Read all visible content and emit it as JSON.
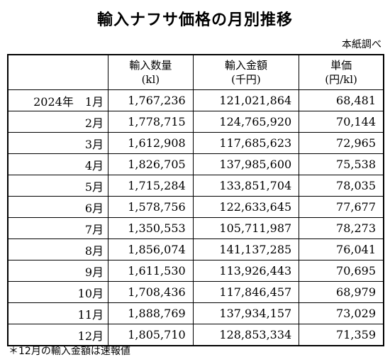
{
  "title": "輸入ナフサ価格の月別推移",
  "source": "本紙調べ",
  "table": {
    "headers": [
      {
        "label": "",
        "unit": ""
      },
      {
        "label": "輸入数量",
        "unit": "(kl)"
      },
      {
        "label": "輸入金額",
        "unit": "(千円)"
      },
      {
        "label": "単価",
        "unit": "(円/kl)"
      }
    ],
    "rows": [
      {
        "month": "2024年　1月",
        "quantity": "1,767,236",
        "amount": "121,021,864",
        "unit_price": "68,481"
      },
      {
        "month": "2月",
        "quantity": "1,778,715",
        "amount": "124,765,920",
        "unit_price": "70,144"
      },
      {
        "month": "3月",
        "quantity": "1,612,908",
        "amount": "117,685,623",
        "unit_price": "72,965"
      },
      {
        "month": "4月",
        "quantity": "1,826,705",
        "amount": "137,985,600",
        "unit_price": "75,538"
      },
      {
        "month": "5月",
        "quantity": "1,715,284",
        "amount": "133,851,704",
        "unit_price": "78,035"
      },
      {
        "month": "6月",
        "quantity": "1,578,756",
        "amount": "122,633,645",
        "unit_price": "77,677"
      },
      {
        "month": "7月",
        "quantity": "1,350,553",
        "amount": "105,711,987",
        "unit_price": "78,273"
      },
      {
        "month": "8月",
        "quantity": "1,856,074",
        "amount": "141,137,285",
        "unit_price": "76,041"
      },
      {
        "month": "9月",
        "quantity": "1,611,530",
        "amount": "113,926,443",
        "unit_price": "70,695"
      },
      {
        "month": "10月",
        "quantity": "1,708,436",
        "amount": "117,846,457",
        "unit_price": "68,979"
      },
      {
        "month": "11月",
        "quantity": "1,888,769",
        "amount": "137,934,157",
        "unit_price": "73,029"
      },
      {
        "month": "12月",
        "quantity": "1,805,710",
        "amount": "128,853,334",
        "unit_price": "71,359"
      }
    ]
  },
  "note": "＊12月の輸入金額は速報値"
}
